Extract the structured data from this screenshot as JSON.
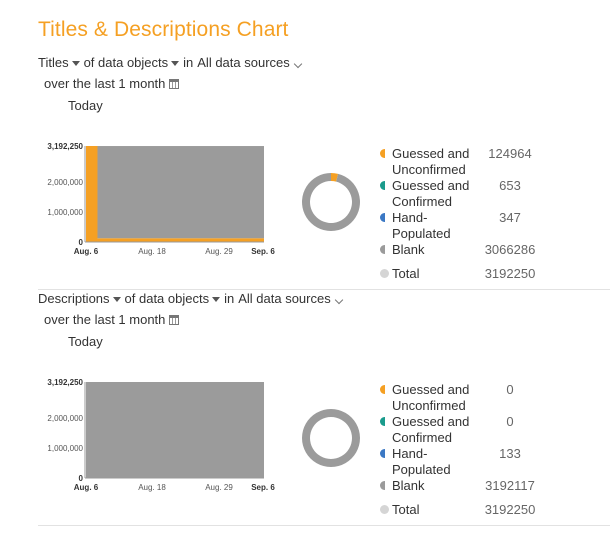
{
  "page_title": "Titles & Descriptions Chart",
  "colors": {
    "guessed_unconfirmed": "#f5a023",
    "guessed_confirmed": "#1a9b8c",
    "hand_populated": "#3b78c4",
    "blank": "#9b9b9b",
    "total": "#d5d5d5"
  },
  "panels": [
    {
      "field": "Titles",
      "mid_text": "of data objects",
      "in_text": "in",
      "source": "All data sources",
      "period": "over the last 1 month",
      "today": "Today",
      "legend": [
        {
          "label": "Guessed and Unconfirmed",
          "value": "124964"
        },
        {
          "label": "Guessed and Confirmed",
          "value": "653"
        },
        {
          "label": "Hand-Populated",
          "value": "347"
        },
        {
          "label": "Blank",
          "value": "3066286"
        },
        {
          "label": "Total",
          "value": "3192250"
        }
      ]
    },
    {
      "field": "Descriptions",
      "mid_text": "of data objects",
      "in_text": "in",
      "source": "All data sources",
      "period": "over the last 1 month",
      "today": "Today",
      "legend": [
        {
          "label": "Guessed and Unconfirmed",
          "value": "0"
        },
        {
          "label": "Guessed and Confirmed",
          "value": "0"
        },
        {
          "label": "Hand-Populated",
          "value": "133"
        },
        {
          "label": "Blank",
          "value": "3192117"
        },
        {
          "label": "Total",
          "value": "3192250"
        }
      ]
    }
  ],
  "chart_data": [
    {
      "type": "area",
      "x": [
        "Aug. 6",
        "Aug. 8",
        "Sep. 6"
      ],
      "series": [
        {
          "name": "Guessed and Unconfirmed",
          "values": [
            3192250,
            124964,
            124964
          ]
        },
        {
          "name": "Blank",
          "values": [
            0,
            3066286,
            3066286
          ]
        }
      ],
      "x_ticks": [
        "Aug. 6",
        "Aug. 18",
        "Aug. 29",
        "Sep. 6"
      ],
      "y_ticks": [
        "0",
        "1,000,000",
        "2,000,000",
        "3,192,250"
      ],
      "ylim": [
        0,
        3192250
      ]
    },
    {
      "type": "area",
      "x": [
        "Aug. 6",
        "Sep. 6"
      ],
      "series": [
        {
          "name": "Hand-Populated",
          "values": [
            133,
            133
          ]
        },
        {
          "name": "Blank",
          "values": [
            3192117,
            3192117
          ]
        }
      ],
      "x_ticks": [
        "Aug. 6",
        "Aug. 18",
        "Aug. 29",
        "Sep. 6"
      ],
      "y_ticks": [
        "0",
        "1,000,000",
        "2,000,000",
        "3,192,250"
      ],
      "ylim": [
        0,
        3192250
      ]
    }
  ]
}
